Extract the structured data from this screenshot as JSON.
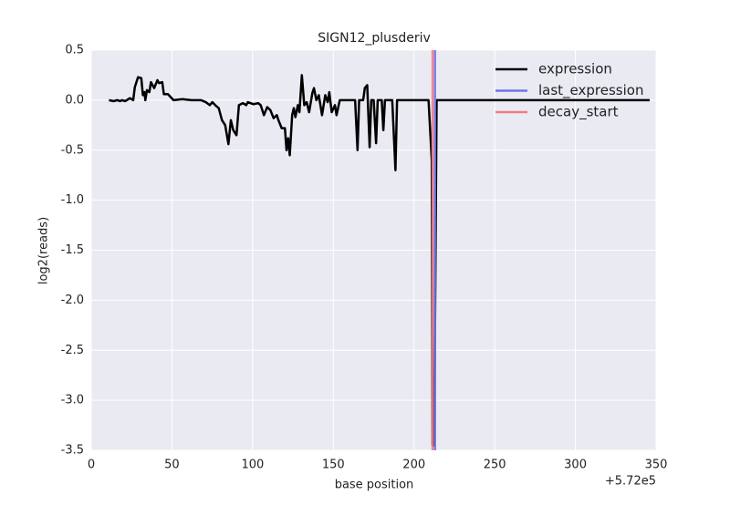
{
  "chart_data": {
    "type": "line",
    "title": "SIGN12_plusderiv",
    "x_label": "base position",
    "y_label": "log2(reads)",
    "x_offset_label": "+5.72e5",
    "x": [
      11,
      14,
      16,
      18,
      19,
      21,
      24,
      26,
      27,
      29,
      31,
      32,
      33,
      33.5,
      34.5,
      36,
      37,
      39,
      41,
      42,
      44,
      45,
      47.5,
      51,
      56.5,
      62,
      68,
      71,
      73.5,
      75,
      77.5,
      79,
      81,
      83,
      85,
      86.5,
      88,
      90,
      91.5,
      94,
      96,
      97,
      100.5,
      103.5,
      105,
      107,
      109,
      111,
      113,
      115,
      116,
      118,
      120,
      121,
      122,
      123,
      124.5,
      125.5,
      126.5,
      128,
      129,
      130.5,
      132,
      133.5,
      135,
      137,
      138,
      139.5,
      141,
      143,
      145,
      146.5,
      147.5,
      149,
      151,
      152,
      154,
      158,
      163.5,
      165,
      166,
      168.5,
      169.5,
      171,
      172.5,
      173.5,
      175,
      176.5,
      177.5,
      180,
      181,
      182,
      186.5,
      188.5,
      189.5,
      209,
      211,
      211.5,
      212.5,
      214,
      346
    ],
    "series": [
      {
        "name": "expression",
        "color": "#000000",
        "values": [
          0.0,
          -0.01,
          0.0,
          -0.01,
          0.0,
          -0.01,
          0.02,
          0.0,
          0.13,
          0.23,
          0.22,
          0.05,
          0.08,
          0.0,
          0.1,
          0.08,
          0.18,
          0.12,
          0.2,
          0.17,
          0.18,
          0.06,
          0.06,
          0.0,
          0.01,
          0.0,
          0.0,
          -0.02,
          -0.05,
          -0.02,
          -0.06,
          -0.08,
          -0.2,
          -0.25,
          -0.44,
          -0.2,
          -0.3,
          -0.35,
          -0.05,
          -0.03,
          -0.05,
          -0.02,
          -0.04,
          -0.03,
          -0.05,
          -0.15,
          -0.07,
          -0.1,
          -0.18,
          -0.15,
          -0.2,
          -0.28,
          -0.28,
          -0.5,
          -0.38,
          -0.55,
          -0.15,
          -0.08,
          -0.17,
          -0.05,
          -0.12,
          0.25,
          -0.05,
          -0.02,
          -0.12,
          0.07,
          0.12,
          0.0,
          0.05,
          -0.15,
          0.05,
          -0.02,
          0.08,
          -0.12,
          -0.05,
          -0.15,
          0.0,
          0.0,
          0.0,
          -0.5,
          0.0,
          0.0,
          0.12,
          0.15,
          -0.47,
          0.0,
          0.0,
          -0.43,
          0.0,
          0.0,
          -0.3,
          0.0,
          0.0,
          -0.7,
          0.0,
          0.0,
          -0.6,
          -3.45,
          -3.45,
          0.0,
          0.0
        ]
      }
    ],
    "vlines": [
      {
        "name": "last_expression",
        "color": "#7272ec",
        "x": 213
      },
      {
        "name": "decay_start",
        "color": "#f08080",
        "x": 211.5
      }
    ],
    "xlim": [
      0,
      350
    ],
    "xticks": [
      0,
      50,
      100,
      150,
      200,
      250,
      300,
      350
    ],
    "ylim": [
      -3.5,
      0.5
    ],
    "yticks": [
      0.5,
      {
        "value": 0,
        "label": "0.0"
      },
      -0.5,
      {
        "value": -1,
        "label": "-1.0"
      },
      -1.5,
      {
        "value": -2,
        "label": "-2.0"
      },
      -2.5,
      {
        "value": -3,
        "label": "-3.0"
      },
      -3.5
    ],
    "grid": true,
    "legend": "upper right"
  }
}
